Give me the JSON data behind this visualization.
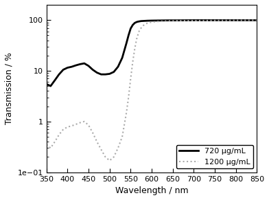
{
  "title": "",
  "xlabel": "Wavelength / nm",
  "ylabel": "Transmission / %",
  "xlim": [
    350,
    850
  ],
  "ylim": [
    0.1,
    200
  ],
  "legend_labels": [
    "720 µg/mL",
    "1200 µg/mL"
  ],
  "solid_color": "#000000",
  "dotted_color": "#aaaaaa",
  "background_color": "#ffffff",
  "curve1_x": [
    350,
    360,
    370,
    380,
    390,
    400,
    410,
    420,
    430,
    440,
    450,
    460,
    470,
    480,
    490,
    500,
    510,
    520,
    530,
    540,
    545,
    550,
    555,
    560,
    565,
    570,
    575,
    580,
    590,
    600,
    620,
    640,
    660,
    700,
    750,
    800,
    850
  ],
  "curve1_y": [
    5.5,
    5.0,
    6.5,
    8.5,
    10.5,
    11.5,
    12.0,
    12.8,
    13.5,
    14.0,
    12.5,
    10.5,
    9.2,
    8.5,
    8.5,
    8.7,
    9.5,
    12.0,
    18.0,
    35.0,
    50.0,
    68.0,
    80.0,
    88.0,
    92.0,
    94.0,
    95.5,
    96.0,
    97.0,
    97.5,
    98.0,
    98.5,
    98.5,
    99.0,
    99.0,
    99.0,
    99.0
  ],
  "curve2_x": [
    350,
    360,
    370,
    380,
    390,
    400,
    410,
    420,
    430,
    440,
    450,
    460,
    470,
    480,
    490,
    500,
    510,
    520,
    530,
    540,
    545,
    550,
    555,
    560,
    565,
    570,
    575,
    580,
    585,
    590,
    595,
    600,
    610,
    620,
    640,
    660,
    700,
    750,
    800,
    850
  ],
  "curve2_y": [
    0.35,
    0.3,
    0.4,
    0.55,
    0.7,
    0.78,
    0.82,
    0.88,
    0.95,
    1.0,
    0.85,
    0.6,
    0.4,
    0.28,
    0.2,
    0.17,
    0.2,
    0.3,
    0.5,
    1.5,
    3.0,
    7.0,
    15.0,
    28.0,
    45.0,
    60.0,
    70.0,
    78.0,
    83.0,
    87.0,
    89.5,
    91.0,
    93.0,
    94.5,
    96.0,
    97.0,
    97.5,
    98.0,
    98.5,
    99.0
  ]
}
